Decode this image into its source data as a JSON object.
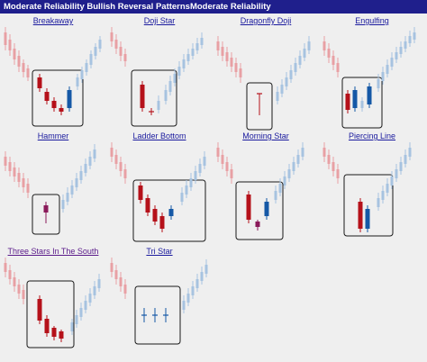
{
  "header": {
    "title": "Moderate Reliability Bullish Reversal PatternsModerate Reliability"
  },
  "colors": {
    "bear": "#b5111a",
    "bull": "#1558a6",
    "bg_bear": "#e8a0a4",
    "bg_bull": "#a7c3e0",
    "box": "#1a1a1a",
    "header_bg": "#1f1f8c",
    "link": "#1a1a9e",
    "visited": "#5a1a8a"
  },
  "patterns": [
    {
      "label": "Breakaway",
      "style": "blue"
    },
    {
      "label": "Doji Star",
      "style": "blue"
    },
    {
      "label": "Dragonfly Doji",
      "style": "blue"
    },
    {
      "label": "Engulfing",
      "style": "blue"
    },
    {
      "label": "Hammer",
      "style": "blue"
    },
    {
      "label": "Ladder Bottom",
      "style": "blue"
    },
    {
      "label": "Morning Star",
      "style": "blue"
    },
    {
      "label": "Piercing Line",
      "style": "blue"
    },
    {
      "label": "Three Stars In The South",
      "style": "purple"
    },
    {
      "label": "Tri Star",
      "style": "blue"
    }
  ]
}
